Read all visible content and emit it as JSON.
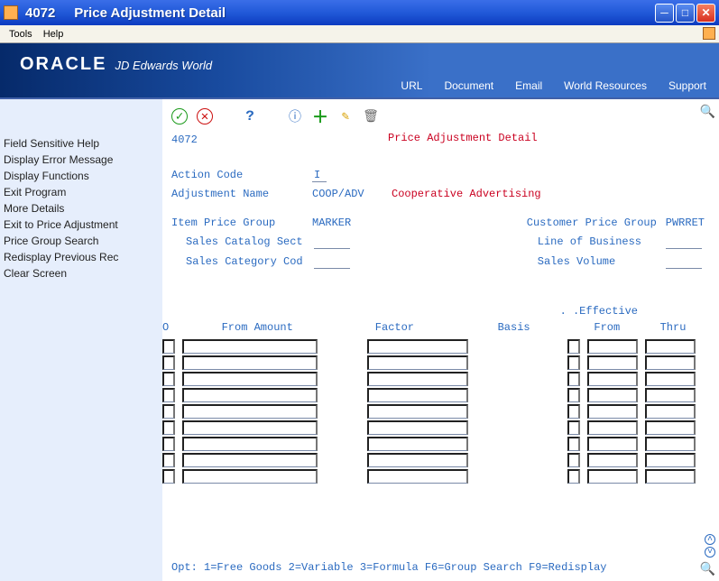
{
  "window": {
    "code": "4072",
    "title": "Price Adjustment Detail"
  },
  "menu": {
    "tools": "Tools",
    "help": "Help"
  },
  "banner": {
    "brand": "ORACLE",
    "product": "JD Edwards World",
    "links": {
      "url": "URL",
      "document": "Document",
      "email": "Email",
      "resources": "World Resources",
      "support": "Support"
    }
  },
  "sidebar": {
    "items": [
      "Field Sensitive Help",
      "Display Error Message",
      "Display Functions",
      "Exit Program",
      "More Details",
      "Exit to Price Adjustment",
      "Price Group Search",
      "Redisplay Previous Rec",
      "Clear Screen"
    ]
  },
  "toolbar": {
    "ok": "✓",
    "cancel": "✕",
    "help": "?",
    "info": "ⓘ",
    "add": "＋",
    "edit": "✎",
    "delete": "🗑"
  },
  "screen": {
    "number": "4072",
    "title": "Price Adjustment Detail",
    "fields": {
      "action_code": {
        "label": "Action Code",
        "value": "I"
      },
      "adj_name": {
        "label": "Adjustment Name",
        "value": "COOP/ADV",
        "desc": "Cooperative Advertising"
      },
      "item_price_group": {
        "label": "Item Price Group",
        "value": "MARKER"
      },
      "sales_catalog_sect": {
        "label": "Sales Catalog Sect",
        "value": ""
      },
      "sales_category_cod": {
        "label": "Sales Category Cod",
        "value": ""
      },
      "cust_price_group": {
        "label": "Customer Price Group",
        "value": "PWRRET"
      },
      "line_of_business": {
        "label": "Line of Business",
        "value": ""
      },
      "sales_volume": {
        "label": "Sales Volume",
        "value": ""
      }
    },
    "grid": {
      "effective_label": ". .Effective",
      "columns": {
        "o": "O",
        "from_amount": "From Amount",
        "factor": "Factor",
        "basis": "Basis",
        "eff_from": "From",
        "eff_thru": "Thru"
      },
      "row_count": 9
    },
    "footer": "Opt:   1=Free Goods   2=Variable   3=Formula    F6=Group Search   F9=Redisplay"
  },
  "colors": {
    "link_blue": "#2a6ac0",
    "alert_red": "#ca0020",
    "sidebar_bg": "#e6eefc"
  }
}
